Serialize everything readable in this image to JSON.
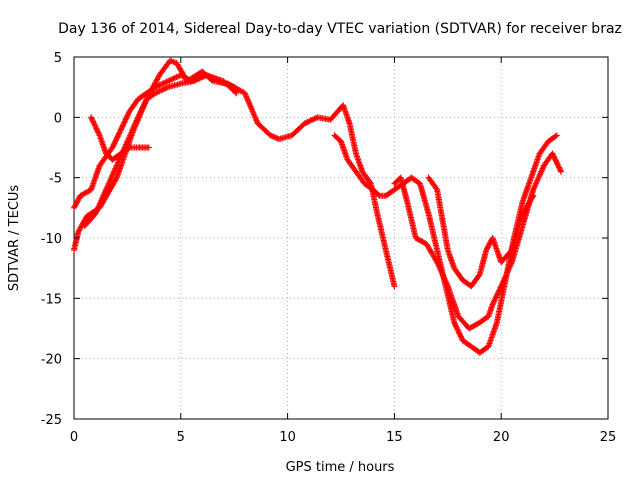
{
  "chart_data": {
    "type": "scatter",
    "title": "Day 136 of 2014, Sidereal Day-to-day VTEC variation (SDTVAR) for receiver braz",
    "xlabel": "GPS time / hours",
    "ylabel": "SDTVAR / TECUs",
    "xlim": [
      0,
      25
    ],
    "ylim": [
      -25,
      5
    ],
    "xticks": [
      "0",
      "5",
      "10",
      "15",
      "20",
      "25"
    ],
    "yticks": [
      "5",
      "0",
      "-5",
      "-10",
      "-15",
      "-20",
      "-25"
    ],
    "grid": true,
    "marker": "plus",
    "color": "#ff0000",
    "tracks": [
      {
        "x": [
          0.0,
          0.2,
          0.6,
          1.2,
          2.0,
          2.8,
          3.4,
          4.0,
          4.5,
          4.8,
          5.3,
          6.0,
          6.5,
          7.2,
          8.0,
          8.6,
          9.2,
          9.6,
          10.2,
          10.8,
          11.4,
          12.0,
          12.6,
          12.9,
          13.2,
          13.5,
          13.9,
          14.2,
          14.6,
          15.0
        ],
        "y": [
          -11.0,
          -9.5,
          -8.2,
          -7.5,
          -5.0,
          -1.0,
          1.5,
          3.5,
          4.7,
          4.5,
          3.0,
          3.8,
          3.0,
          2.8,
          2.0,
          -0.5,
          -1.5,
          -1.8,
          -1.5,
          -0.5,
          0.0,
          -0.2,
          1.0,
          -0.5,
          -3.0,
          -4.5,
          -5.5,
          -8.0,
          -11.0,
          -14.0
        ]
      },
      {
        "x": [
          0.0,
          0.3,
          0.8,
          1.2,
          1.8,
          2.2,
          2.6,
          3.0,
          3.4,
          3.8,
          4.4,
          5.0,
          5.5,
          6.2,
          7.0,
          7.6
        ],
        "y": [
          -7.5,
          -6.5,
          -6.0,
          -4.0,
          -2.5,
          -1.0,
          0.5,
          1.5,
          2.0,
          2.5,
          3.0,
          3.5,
          3.0,
          3.5,
          3.0,
          2.0
        ]
      },
      {
        "x": [
          0.5,
          1.0,
          1.5,
          2.0,
          2.5,
          3.0,
          3.4,
          3.8,
          4.4,
          5.0,
          5.6,
          6.2,
          6.8,
          7.5
        ],
        "y": [
          -9.0,
          -8.0,
          -6.0,
          -4.0,
          -2.0,
          0.0,
          1.5,
          2.0,
          2.5,
          2.8,
          3.0,
          3.5,
          3.0,
          2.5
        ]
      },
      {
        "x": [
          0.8,
          1.2,
          1.5,
          1.8,
          2.2,
          2.6,
          3.0,
          3.5
        ],
        "y": [
          0.0,
          -1.5,
          -3.0,
          -3.5,
          -3.0,
          -2.5,
          -2.5,
          -2.5
        ]
      },
      {
        "x": [
          12.2,
          12.5,
          12.8,
          13.2,
          13.6,
          14.0,
          14.3,
          14.6,
          15.0,
          15.4,
          15.8,
          16.2,
          16.6,
          17.0,
          17.4,
          17.8,
          18.2,
          18.6,
          19.0,
          19.4,
          19.8,
          20.2,
          20.6,
          21.0,
          21.4,
          21.8,
          22.2,
          22.6
        ],
        "y": [
          -1.5,
          -2.0,
          -3.5,
          -4.5,
          -5.5,
          -6.0,
          -6.5,
          -6.5,
          -6.0,
          -5.5,
          -5.0,
          -5.5,
          -8.0,
          -11.0,
          -14.0,
          -17.0,
          -18.5,
          -19.0,
          -19.5,
          -19.0,
          -17.0,
          -13.5,
          -10.0,
          -7.0,
          -5.0,
          -3.0,
          -2.0,
          -1.5
        ]
      },
      {
        "x": [
          15.0,
          15.3,
          15.6,
          16.0,
          16.5,
          17.0,
          17.5,
          18.0,
          18.5,
          19.0,
          19.4,
          19.6,
          20.0,
          20.5,
          21.0,
          21.5,
          22.0,
          22.4,
          22.8
        ],
        "y": [
          -5.5,
          -5.0,
          -7.0,
          -10.0,
          -10.5,
          -12.0,
          -14.0,
          -16.5,
          -17.5,
          -17.0,
          -16.5,
          -15.5,
          -14.0,
          -12.0,
          -9.0,
          -6.0,
          -4.0,
          -3.0,
          -4.5
        ]
      },
      {
        "x": [
          16.6,
          17.0,
          17.2,
          17.5,
          17.8,
          18.2,
          18.6,
          19.0,
          19.3,
          19.6,
          20.0,
          20.5,
          21.0,
          21.5
        ],
        "y": [
          -5.0,
          -6.0,
          -8.0,
          -11.0,
          -12.5,
          -13.5,
          -14.0,
          -13.0,
          -11.0,
          -10.0,
          -12.0,
          -11.0,
          -8.0,
          -6.5
        ]
      }
    ]
  }
}
